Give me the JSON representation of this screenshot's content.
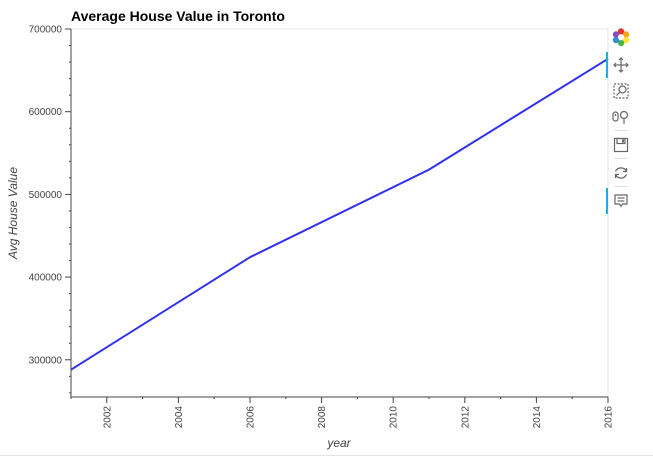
{
  "chart_data": {
    "type": "line",
    "title": "Average House Value in Toronto",
    "xlabel": "year",
    "ylabel": "Avg House Value",
    "x": [
      2001,
      2006,
      2011,
      2016
    ],
    "series": [
      {
        "values": [
          288000,
          424000,
          530000,
          664000
        ],
        "color": "#3030ee"
      }
    ],
    "xlim": [
      2001,
      2016
    ],
    "ylim": [
      255000,
      700000
    ],
    "xticks": [
      "2002",
      "2004",
      "2006",
      "2008",
      "2010",
      "2012",
      "2014",
      "2016"
    ],
    "yticks": [
      "300000",
      "400000",
      "500000",
      "600000",
      "700000"
    ],
    "grid": false
  },
  "toolbar": {
    "tools": [
      {
        "name": "bokeh-logo-icon"
      },
      {
        "name": "pan-icon"
      },
      {
        "name": "box-zoom-icon"
      },
      {
        "name": "wheel-zoom-icon"
      },
      {
        "name": "save-icon"
      },
      {
        "name": "reset-icon"
      },
      {
        "name": "hover-icon"
      }
    ]
  }
}
